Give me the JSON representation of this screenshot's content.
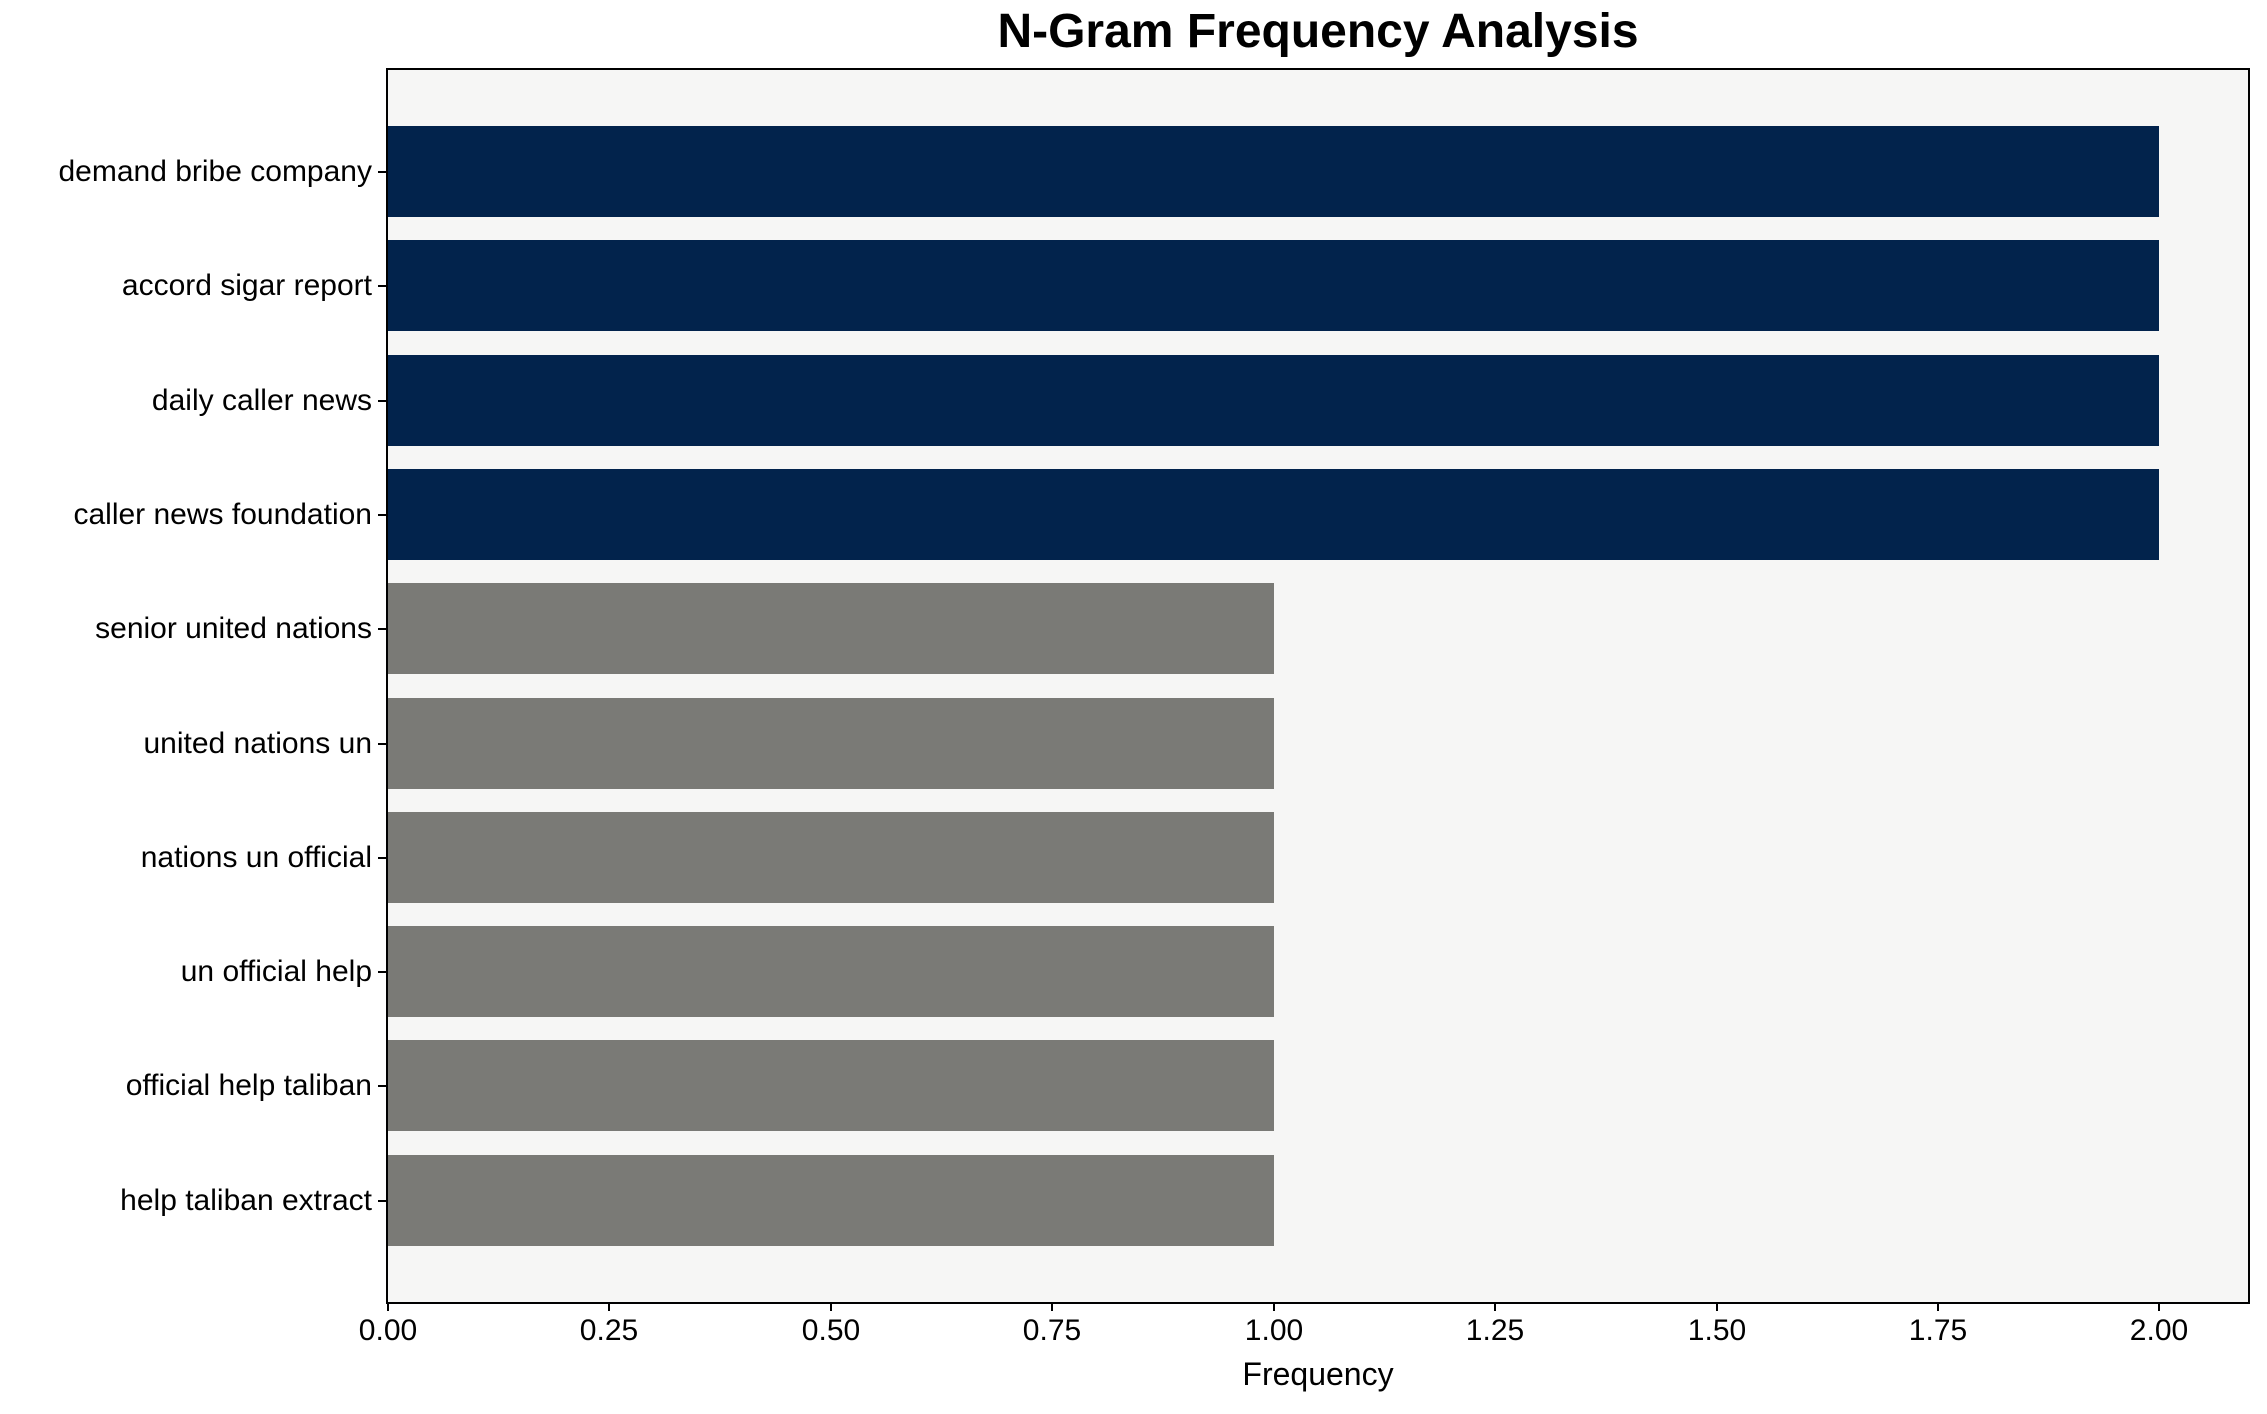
{
  "chart_data": {
    "type": "bar",
    "orientation": "horizontal",
    "title": "N-Gram Frequency Analysis",
    "xlabel": "Frequency",
    "ylabel": "",
    "categories": [
      "demand bribe company",
      "accord sigar report",
      "daily caller news",
      "caller news foundation",
      "senior united nations",
      "united nations un",
      "nations un official",
      "un official help",
      "official help taliban",
      "help taliban extract"
    ],
    "values": [
      2,
      2,
      2,
      2,
      1,
      1,
      1,
      1,
      1,
      1
    ],
    "bar_colors": [
      "#02234C",
      "#02234C",
      "#02234C",
      "#02234C",
      "#7A7A76",
      "#7A7A76",
      "#7A7A76",
      "#7A7A76",
      "#7A7A76",
      "#7A7A76"
    ],
    "xlim": [
      0,
      2.1
    ],
    "xticks": [
      0,
      0.25,
      0.5,
      0.75,
      1.0,
      1.25,
      1.5,
      1.75,
      2.0
    ],
    "xtick_labels": [
      "0.00",
      "0.25",
      "0.50",
      "0.75",
      "1.00",
      "1.25",
      "1.50",
      "1.75",
      "2.00"
    ],
    "grid": false,
    "legend": false,
    "colors": {
      "plot_background": "#F6F6F5",
      "figure_background": "#FFFFFF",
      "spine": "#000000",
      "text": "#000000"
    }
  }
}
